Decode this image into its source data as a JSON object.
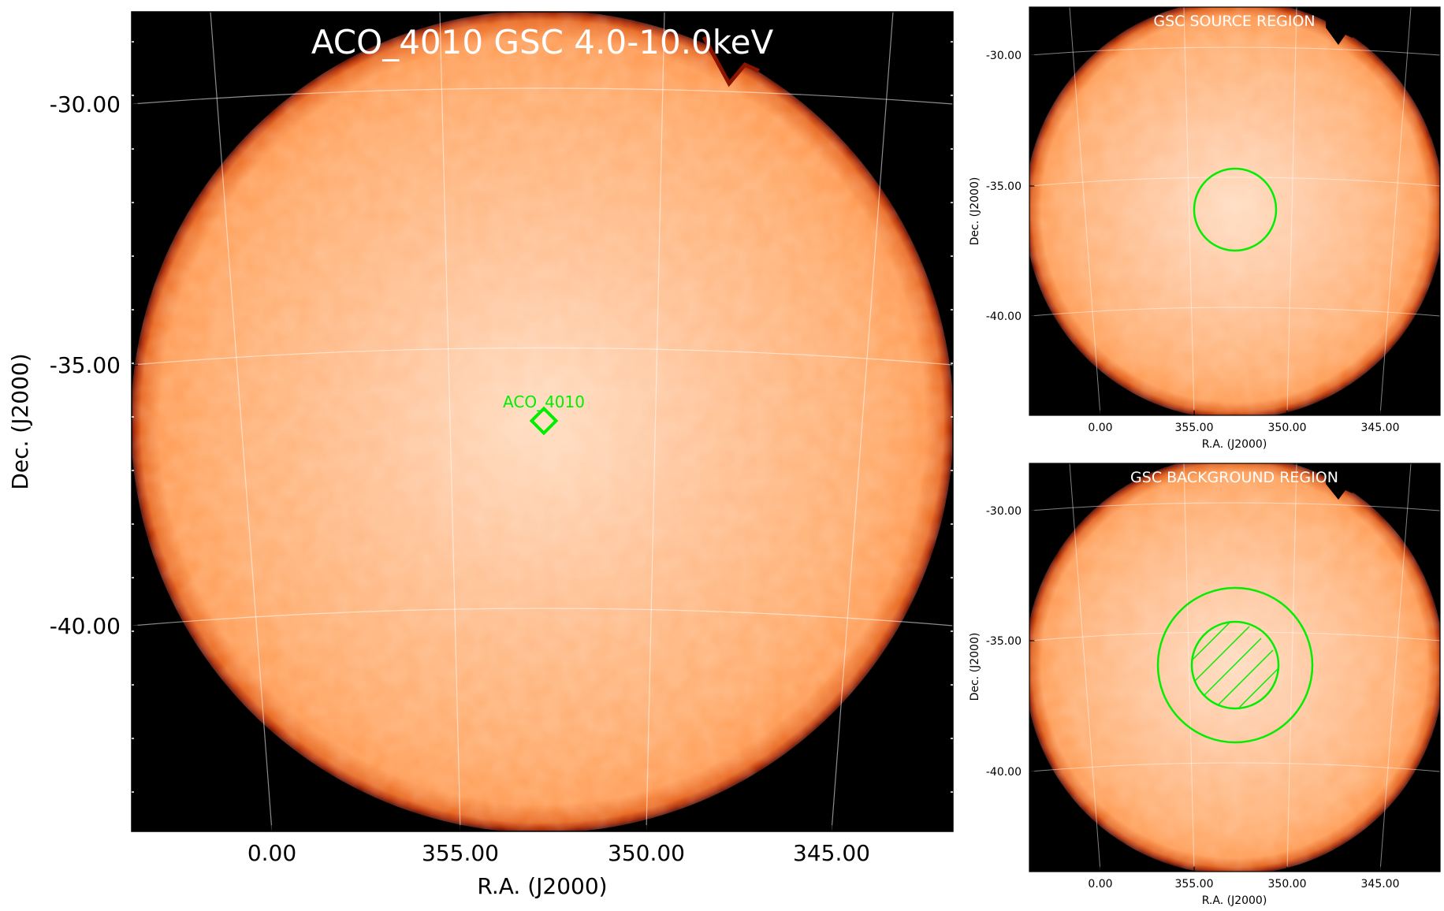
{
  "chart_data": [
    {
      "type": "image",
      "panel": "main",
      "title": "ACO_4010 GSC 4.0-10.0keV",
      "xlabel": "R.A. (J2000)",
      "ylabel": "Dec. (J2000)",
      "x_ticks": [
        "0.00",
        "355.00",
        "350.00",
        "345.00"
      ],
      "y_ticks": [
        "-30.00",
        "-35.00",
        "-40.00"
      ],
      "x_tick_values": [
        0,
        355,
        350,
        345
      ],
      "y_tick_values": [
        -30,
        -35,
        -40
      ],
      "source_label": "ACO_4010",
      "marker": "diamond",
      "colormap": "heat (black-red-orange-white)"
    },
    {
      "type": "image",
      "panel": "source-region",
      "title": "GSC SOURCE REGION",
      "xlabel": "R.A. (J2000)",
      "ylabel": "Dec. (J2000)",
      "x_ticks": [
        "0.00",
        "355.00",
        "350.00",
        "345.00"
      ],
      "y_ticks": [
        "-30.00",
        "-35.00",
        "-40.00"
      ],
      "region": "circle"
    },
    {
      "type": "image",
      "panel": "background-region",
      "title": "GSC BACKGROUND REGION",
      "xlabel": "R.A. (J2000)",
      "ylabel": "Dec. (J2000)",
      "x_ticks": [
        "0.00",
        "355.00",
        "350.00",
        "345.00"
      ],
      "y_ticks": [
        "-30.00",
        "-35.00",
        "-40.00"
      ],
      "region": "annulus with hatched excluded inner circle"
    }
  ],
  "colors": {
    "region": "#00ee00",
    "grid": "#ffffff",
    "background": "#000000",
    "disk_inner": "#ffd9b8",
    "disk_mid": "#ffa766",
    "disk_edge": "#9e1a00"
  }
}
